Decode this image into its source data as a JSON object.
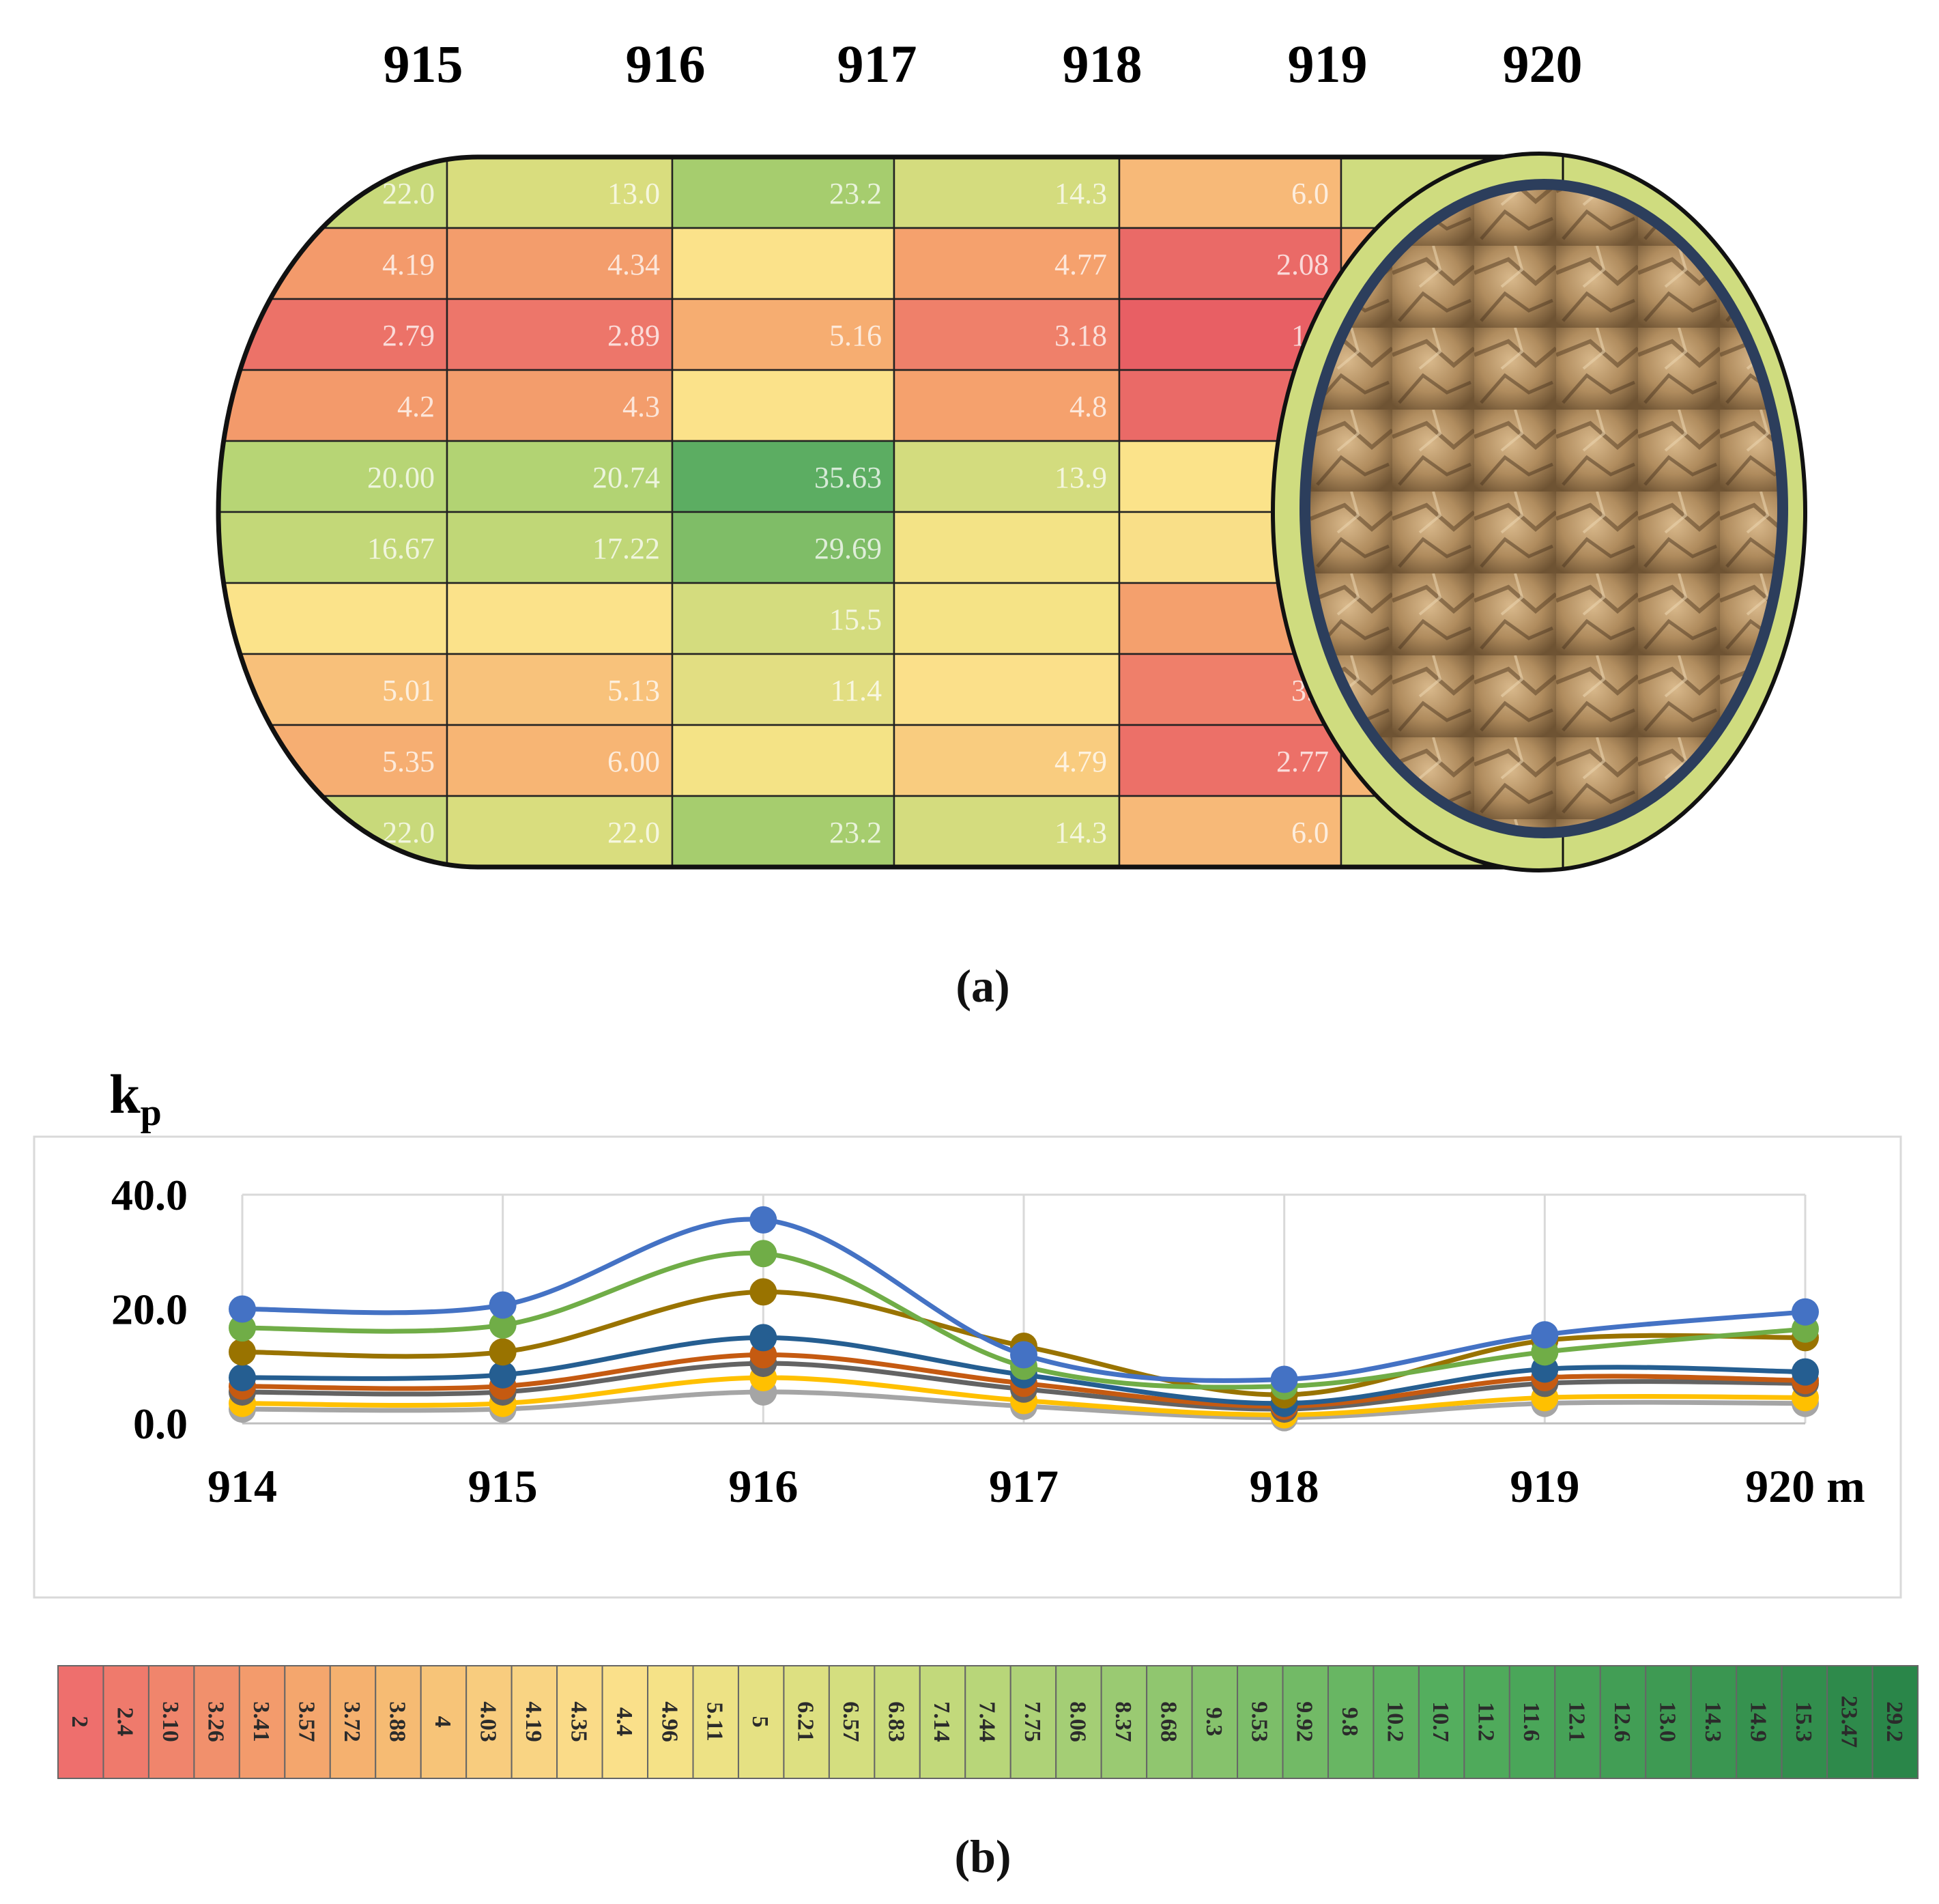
{
  "panel_a": {
    "caption": "(a)",
    "column_labels": [
      "915",
      "916",
      "917",
      "918",
      "919",
      "920"
    ],
    "cells": [
      [
        {
          "text": "22.0",
          "color": "#c8d97a"
        },
        {
          "text": "13.0",
          "color": "#d9dd7e"
        },
        {
          "text": "23.2",
          "color": "#a6cd6e"
        },
        {
          "text": "14.3",
          "color": "#d4dc7e"
        },
        {
          "text": "6.0",
          "color": "#f7b978"
        },
        {
          "text": "",
          "color": "#cfdc7f"
        }
      ],
      [
        {
          "text": "4.19",
          "color": "#f39a6b"
        },
        {
          "text": "4.34",
          "color": "#f39d6c"
        },
        {
          "text": "",
          "color": "#fbe28a"
        },
        {
          "text": "4.77",
          "color": "#f5a16d"
        },
        {
          "text": "2.08",
          "color": "#ea6a67"
        },
        {
          "text": "",
          "color": "#f5a56e"
        }
      ],
      [
        {
          "text": "2.79",
          "color": "#ec7268"
        },
        {
          "text": "2.89",
          "color": "#ed766a"
        },
        {
          "text": "5.16",
          "color": "#f6ad71"
        },
        {
          "text": "3.18",
          "color": "#ef806a"
        },
        {
          "text": "1.7",
          "color": "#e85f64"
        },
        {
          "text": "",
          "color": "#f08a6b"
        }
      ],
      [
        {
          "text": "4.2",
          "color": "#f39a6b"
        },
        {
          "text": "4.3",
          "color": "#f39d6c"
        },
        {
          "text": "",
          "color": "#fbe28a"
        },
        {
          "text": "4.8",
          "color": "#f5a16d"
        },
        {
          "text": "",
          "color": "#ea6a67"
        },
        {
          "text": "",
          "color": "#f5a56e"
        }
      ],
      [
        {
          "text": "20.00",
          "color": "#b7d575"
        },
        {
          "text": "20.74",
          "color": "#b2d373"
        },
        {
          "text": "35.63",
          "color": "#5cad62"
        },
        {
          "text": "13.9",
          "color": "#d3dc7e"
        },
        {
          "text": "",
          "color": "#fbe38a"
        },
        {
          "text": "",
          "color": "#c8d97a"
        }
      ],
      [
        {
          "text": "16.67",
          "color": "#c3d878"
        },
        {
          "text": "17.22",
          "color": "#c0d777"
        },
        {
          "text": "29.69",
          "color": "#7fbd67"
        },
        {
          "text": "",
          "color": "#f3e386"
        },
        {
          "text": "",
          "color": "#f9df88"
        },
        {
          "text": "",
          "color": "#ccda7b"
        }
      ],
      [
        {
          "text": "",
          "color": "#fbe38a"
        },
        {
          "text": "",
          "color": "#fbe28a"
        },
        {
          "text": "15.5",
          "color": "#d4dc7e"
        },
        {
          "text": "",
          "color": "#f5e386"
        },
        {
          "text": "",
          "color": "#f4a06d"
        },
        {
          "text": "",
          "color": "#e6de84"
        }
      ],
      [
        {
          "text": "5.01",
          "color": "#f8c07a"
        },
        {
          "text": "5.13",
          "color": "#f8c27b"
        },
        {
          "text": "11.4",
          "color": "#e2de82"
        },
        {
          "text": "",
          "color": "#fbe08a"
        },
        {
          "text": "3.5",
          "color": "#ef7f6a"
        },
        {
          "text": "",
          "color": "#f6b474"
        }
      ],
      [
        {
          "text": "5.35",
          "color": "#f6ae72"
        },
        {
          "text": "6.00",
          "color": "#f7b574"
        },
        {
          "text": "",
          "color": "#f4e386"
        },
        {
          "text": "4.79",
          "color": "#f9cc7f"
        },
        {
          "text": "2.77",
          "color": "#ec7068"
        },
        {
          "text": "",
          "color": "#f6b676"
        }
      ],
      [
        {
          "text": "22.0",
          "color": "#c8d97a"
        },
        {
          "text": "22.0",
          "color": "#d9dd7e"
        },
        {
          "text": "23.2",
          "color": "#a6cd6e"
        },
        {
          "text": "14.3",
          "color": "#d4dc7e"
        },
        {
          "text": "6.0",
          "color": "#f7b978"
        },
        {
          "text": "",
          "color": "#cfdc7f"
        }
      ]
    ]
  },
  "chart_data": {
    "type": "line",
    "caption": "(b)",
    "ylabel": "kp",
    "ylabel_main": "k",
    "ylabel_sub": "p",
    "x": [
      914,
      915,
      916,
      917,
      918,
      919,
      920
    ],
    "x_tick_labels": [
      "914",
      "915",
      "916",
      "917",
      "918",
      "919",
      "920 m"
    ],
    "y_tick_labels": [
      "40.0",
      "20.0",
      "0.0"
    ],
    "y_ticks": [
      40,
      20,
      0
    ],
    "ylim": [
      0,
      40
    ],
    "grid": true,
    "series": [
      {
        "color": "#4472c4",
        "values": [
          20.0,
          20.7,
          35.6,
          12.0,
          7.7,
          15.5,
          19.5
        ]
      },
      {
        "color": "#70ad47",
        "values": [
          16.7,
          17.2,
          29.7,
          10.0,
          6.5,
          12.5,
          16.5
        ]
      },
      {
        "color": "#997300",
        "values": [
          12.5,
          12.5,
          23.0,
          13.5,
          5.0,
          14.5,
          15.0
        ]
      },
      {
        "color": "#255e91",
        "values": [
          8.0,
          8.5,
          15.0,
          8.5,
          3.5,
          9.5,
          9.0
        ]
      },
      {
        "color": "#c55a11",
        "values": [
          6.5,
          6.5,
          12.0,
          7.0,
          3.0,
          8.0,
          7.5
        ]
      },
      {
        "color": "#636363",
        "values": [
          5.5,
          5.5,
          10.5,
          6.0,
          2.5,
          7.0,
          7.0
        ]
      },
      {
        "color": "#ffc000",
        "values": [
          3.5,
          3.5,
          8.0,
          4.0,
          1.5,
          4.5,
          4.5
        ]
      },
      {
        "color": "#a5a5a5",
        "values": [
          2.5,
          2.5,
          5.5,
          3.0,
          1.0,
          3.5,
          3.5
        ]
      }
    ]
  },
  "color_scale": {
    "labels": [
      "2",
      "2.4",
      "3.10",
      "3.26",
      "3.41",
      "3.57",
      "3.72",
      "3.88",
      "4",
      "4.03",
      "4.19",
      "4.35",
      "4.4",
      "4.96",
      "5.11",
      "5",
      "6.21",
      "6.57",
      "6.83",
      "7.14",
      "7.44",
      "7.75",
      "8.06",
      "8.37",
      "8.68",
      "9.3",
      "9.53",
      "9.92",
      "9.8",
      "10.2",
      "10.7",
      "11.2",
      "11.6",
      "12.1",
      "12.6",
      "13.0",
      "14.3",
      "14.9",
      "15.3",
      "23.47",
      "29.2"
    ],
    "colors": [
      "#ee6f6d",
      "#ef7a6c",
      "#f0856c",
      "#f1906c",
      "#f39b6c",
      "#f4a66d",
      "#f5b16f",
      "#f6bb73",
      "#f7c478",
      "#f8cc7e",
      "#f9d483",
      "#fadb88",
      "#fae08a",
      "#f5e287",
      "#ede285",
      "#e5e183",
      "#dde081",
      "#d4de7f",
      "#cbdc7d",
      "#c2d97b",
      "#b8d679",
      "#aed277",
      "#a4ce75",
      "#9aca72",
      "#90c66f",
      "#86c26c",
      "#7cbe69",
      "#72ba66",
      "#68b663",
      "#5eb260",
      "#54ae5e",
      "#4faa5b",
      "#4aa659",
      "#46a257",
      "#429e55",
      "#3e9a53",
      "#3a9651",
      "#36924f",
      "#328e4d",
      "#2e8a4b",
      "#2a8649"
    ]
  }
}
